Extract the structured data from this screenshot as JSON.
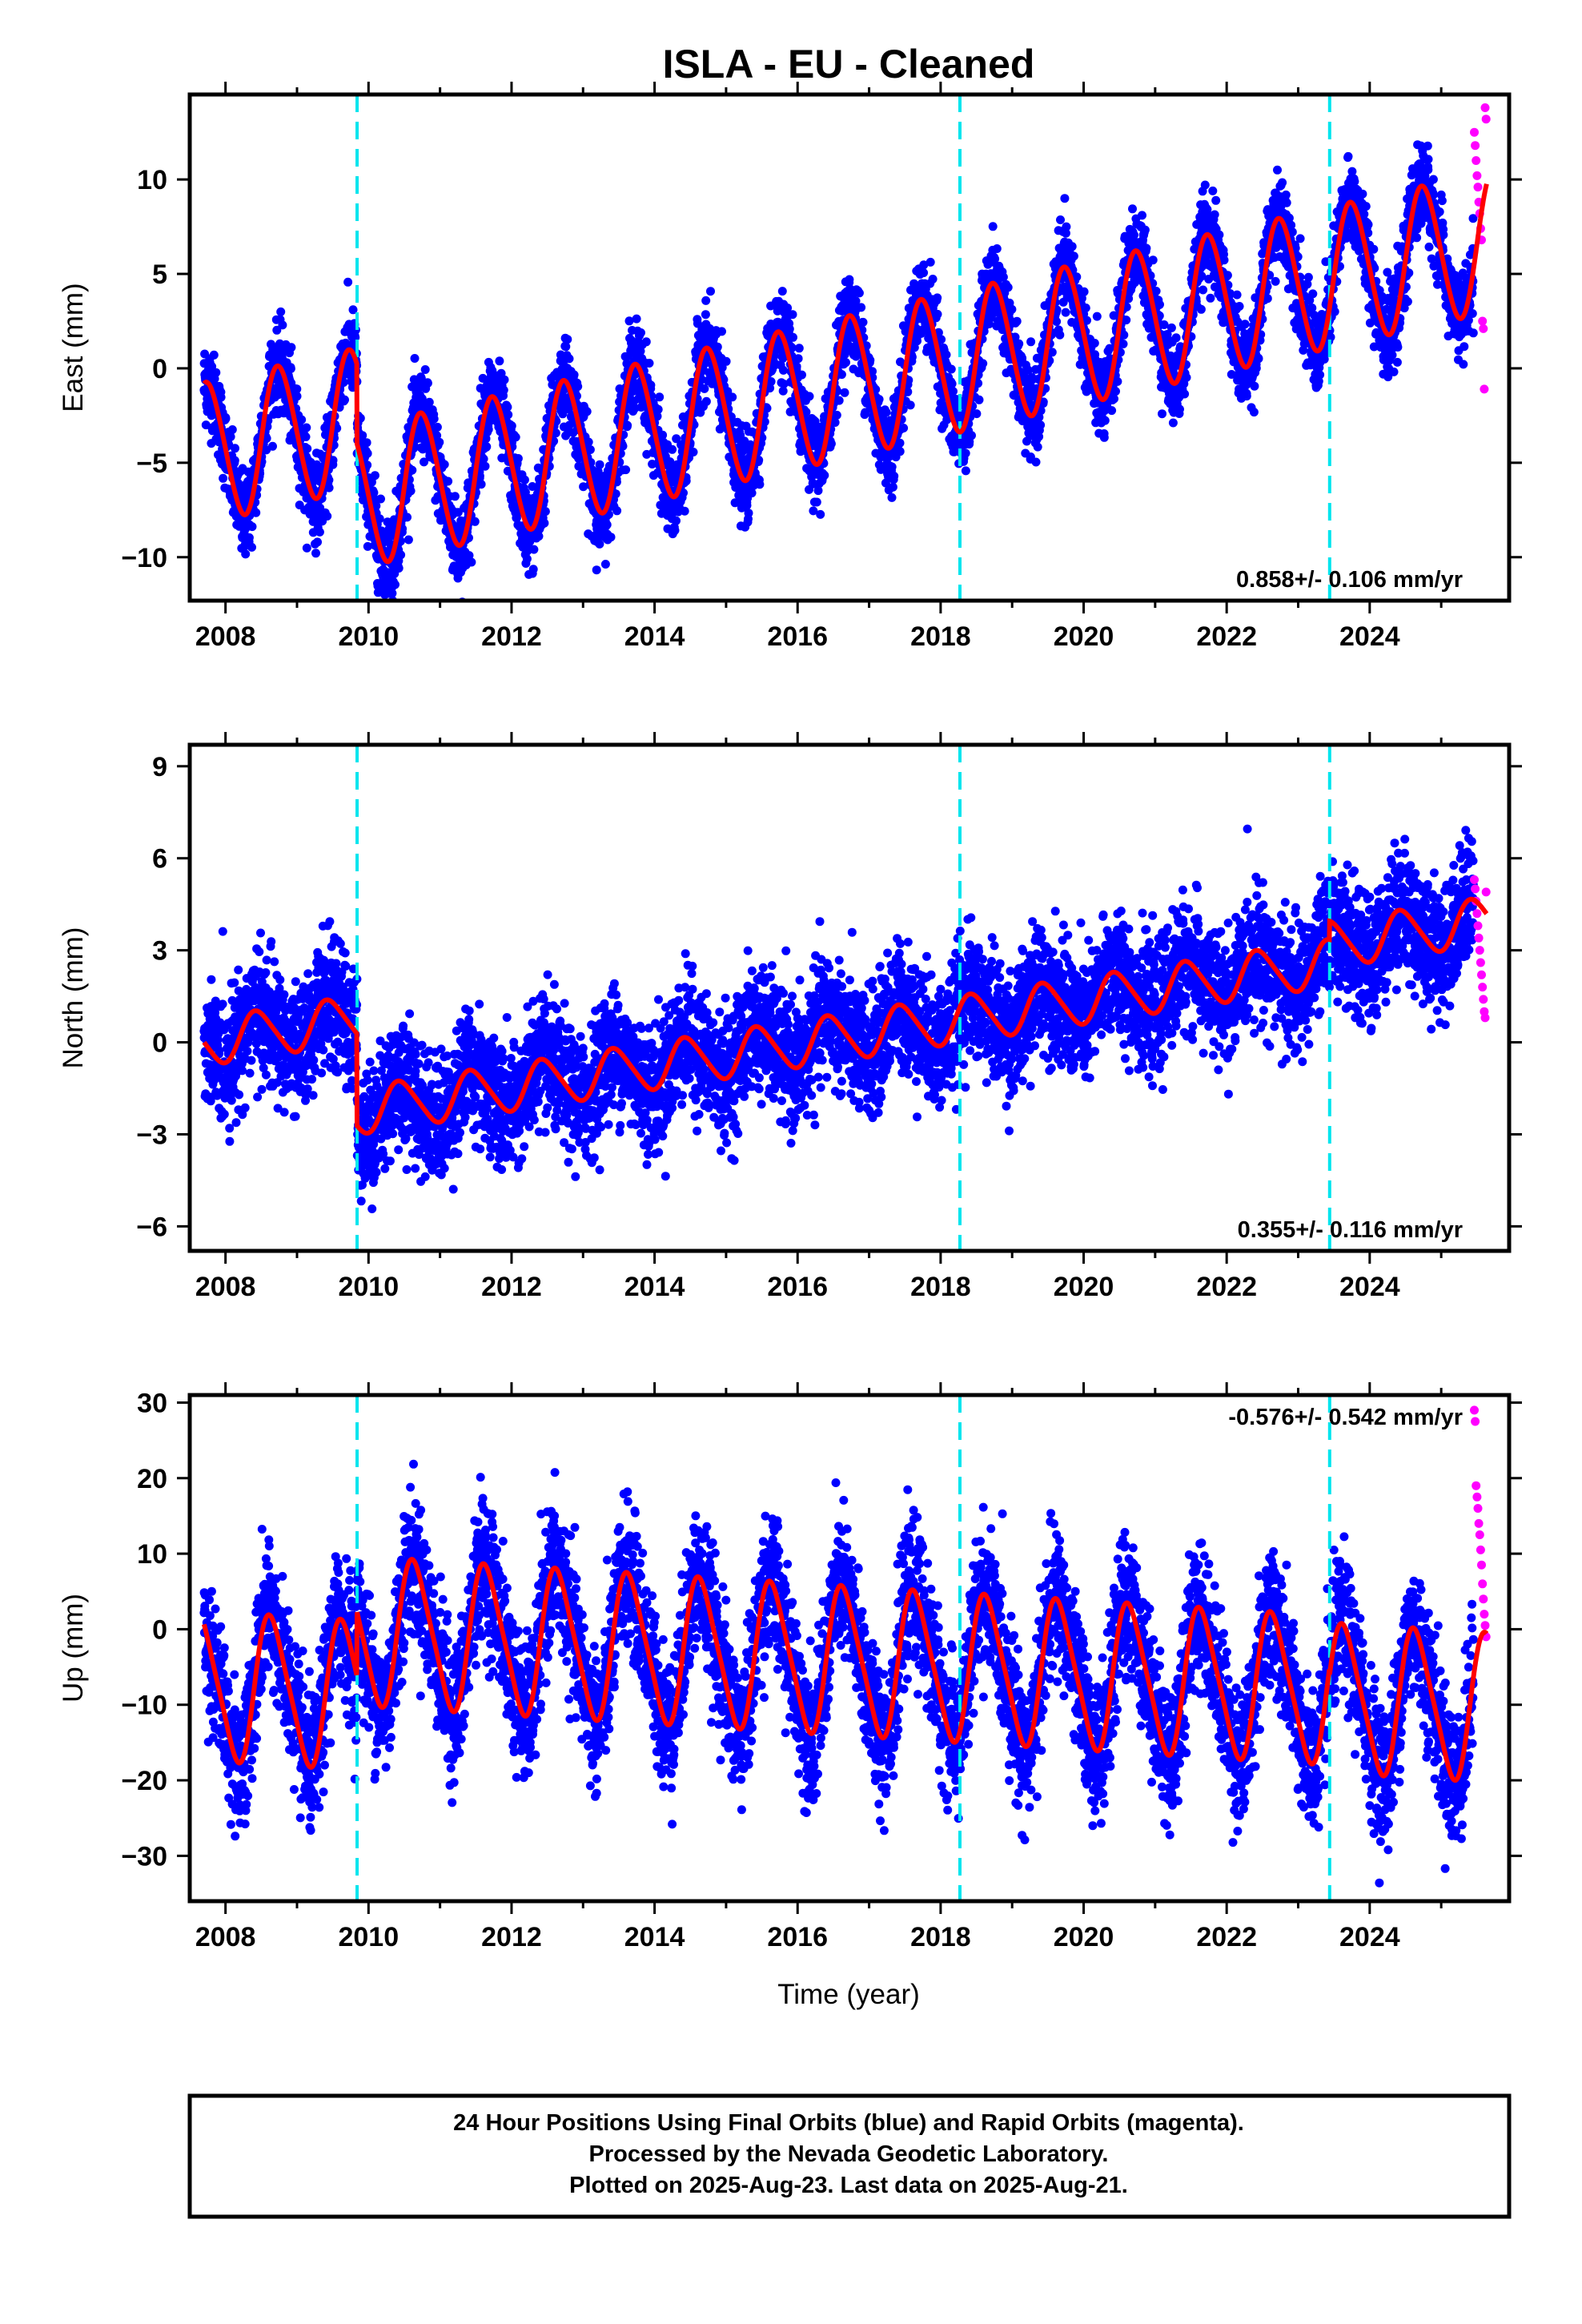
{
  "title": "ISLA  - EU - Cleaned",
  "xlabel": "Time (year)",
  "footer": {
    "line1": "24 Hour Positions Using Final Orbits (blue) and Rapid Orbits (magenta).",
    "line2": "Processed by the Nevada Geodetic Laboratory.",
    "line3": "Plotted on 2025-Aug-23. Last data on 2025-Aug-21."
  },
  "colors": {
    "final": "#0000ff",
    "rapid": "#ff00ff",
    "model": "#ff0000",
    "break": "#00e5ee"
  },
  "chart_data": [
    {
      "type": "scatter",
      "component": "East",
      "ylabel": "East (mm)",
      "xlim": [
        2007.5,
        2025.95
      ],
      "ylim": [
        -12.3,
        14.5
      ],
      "xticks": [
        2008,
        2010,
        2012,
        2014,
        2016,
        2018,
        2020,
        2022,
        2024
      ],
      "xtick_labels": [
        "2008",
        "2010",
        "2012",
        "2014",
        "2016",
        "2018",
        "2020",
        "2022",
        "2024"
      ],
      "yticks": [
        -10,
        -5,
        0,
        5,
        10
      ],
      "ytick_labels": [
        "−10",
        "−5",
        "0",
        "5",
        "10"
      ],
      "rate_label": "0.858+/- 0.106 mm/yr",
      "rate_position": "bottom-right",
      "breaks": [
        2009.84,
        2018.27,
        2023.44
      ],
      "start": 2007.7,
      "end_final": 2025.45,
      "end": 2025.64,
      "model": {
        "offset": -4.5,
        "trend": 0.858,
        "annual": 3.7,
        "phase": 0.5,
        "semiannual": 0.3,
        "step_at": 2009.84,
        "step": -4.2,
        "segments": [
          [
            2007.7,
            2009.84,
            -4.5
          ],
          [
            2009.84,
            2018.27,
            -8.7
          ],
          [
            2018.27,
            2023.44,
            -8.7
          ],
          [
            2023.44,
            2025.64,
            -8.7
          ]
        ]
      },
      "scatter": 1.1,
      "rapid_values": [
        12.5,
        11.8,
        11.0,
        10.2,
        9.6,
        8.8,
        8.2,
        7.4,
        6.8,
        2.5,
        2.1,
        -1.1,
        13.8,
        13.2
      ]
    },
    {
      "type": "scatter",
      "component": "North",
      "ylabel": "North (mm)",
      "xlim": [
        2007.5,
        2025.95
      ],
      "ylim": [
        -6.8,
        9.7
      ],
      "xticks": [
        2008,
        2010,
        2012,
        2014,
        2016,
        2018,
        2020,
        2022,
        2024
      ],
      "xtick_labels": [
        "2008",
        "2010",
        "2012",
        "2014",
        "2016",
        "2018",
        "2020",
        "2022",
        "2024"
      ],
      "yticks": [
        -6,
        -3,
        0,
        3,
        6,
        9
      ],
      "ytick_labels": [
        "−6",
        "−3",
        "0",
        "3",
        "6",
        "9"
      ],
      "rate_label": "0.355+/- 0.116 mm/yr",
      "rate_position": "bottom-right",
      "breaks": [
        2009.84,
        2018.27,
        2023.44
      ],
      "start": 2007.7,
      "end_final": 2025.45,
      "end": 2025.64,
      "model": {
        "offset": 0.0,
        "trend": 0.355,
        "annual": 0.75,
        "phase": 0.2,
        "semiannual": 0.1,
        "step_at": 2009.84,
        "step": -3.0,
        "segments": [
          [
            2007.7,
            2009.84,
            0.0
          ],
          [
            2009.84,
            2018.27,
            -3.0
          ],
          [
            2018.27,
            2023.44,
            -3.0
          ],
          [
            2023.44,
            2025.64,
            -2.4
          ]
        ]
      },
      "scatter": 1.0,
      "rapid_values": [
        5.3,
        5.0,
        4.6,
        4.2,
        3.8,
        3.4,
        3.0,
        2.6,
        2.2,
        1.8,
        1.4,
        1.0,
        0.8,
        4.9
      ]
    },
    {
      "type": "scatter",
      "component": "Up",
      "ylabel": "Up (mm)",
      "xlim": [
        2007.5,
        2025.95
      ],
      "ylim": [
        -36.0,
        31.0
      ],
      "xticks": [
        2008,
        2010,
        2012,
        2014,
        2016,
        2018,
        2020,
        2022,
        2024
      ],
      "xtick_labels": [
        "2008",
        "2010",
        "2012",
        "2014",
        "2016",
        "2018",
        "2020",
        "2022",
        "2024"
      ],
      "yticks": [
        -30,
        -20,
        -10,
        0,
        10,
        20,
        30
      ],
      "ytick_labels": [
        "−30",
        "−20",
        "−10",
        "0",
        "10",
        "20",
        "30"
      ],
      "rate_label": "-0.576+/- 0.542 mm/yr",
      "rate_position": "top-right",
      "breaks": [
        2009.84,
        2018.27,
        2023.44
      ],
      "start": 2007.7,
      "end_final": 2025.45,
      "end": 2025.64,
      "model": {
        "offset": -7.5,
        "trend": -0.576,
        "annual": 9.5,
        "phase": 0.4,
        "semiannual": 1.5,
        "step_at": 2009.84,
        "step": 8.5,
        "segments": [
          [
            2007.7,
            2009.84,
            -7.5
          ],
          [
            2009.84,
            2018.27,
            1.0
          ],
          [
            2018.27,
            2023.44,
            1.0
          ],
          [
            2023.44,
            2025.64,
            0.0
          ]
        ]
      },
      "scatter": 4.5,
      "rapid_values": [
        29.0,
        27.5,
        19.0,
        17.5,
        16.0,
        14.0,
        12.5,
        10.5,
        8.5,
        6.0,
        4.0,
        2.0,
        0.5,
        -1.0
      ]
    }
  ]
}
